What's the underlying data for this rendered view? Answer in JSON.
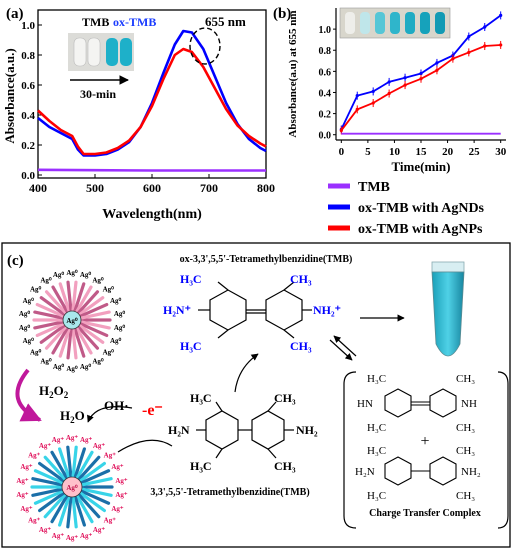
{
  "panels": {
    "a": {
      "tag": "(a)",
      "ylabel": "Absorbance(a.u.)",
      "xlabel": "Wavelength(nm)",
      "peak_label": "655 nm",
      "inset_label_tmb": "TMB",
      "inset_label_oxtmb": "ox-TMB",
      "inset_time": "30-min",
      "xticks": [
        "400",
        "500",
        "600",
        "700",
        "800"
      ],
      "yticks": [
        "0.0",
        "0.2",
        "0.4",
        "0.6",
        "0.8",
        "1.0"
      ]
    },
    "b": {
      "tag": "(b)",
      "ylabel": "Absorbance(a.u) at 655 nm",
      "xlabel": "Time(min)",
      "xticks": [
        "0",
        "5",
        "10",
        "15",
        "20",
        "25",
        "30"
      ],
      "yticks": [
        "0.0",
        "0.2",
        "0.4",
        "0.6",
        "0.8",
        "1.0"
      ]
    },
    "c": {
      "tag": "(c)",
      "title_top": "ox-3,3',5,5'-Tetramethylbenzidine(TMB)",
      "title_bottom": "3,3',5,5'-Tetramethylbenzidine(TMB)",
      "h2o2": "H2O2",
      "h2o": "H2O",
      "oh": "OH·",
      "electron": "-e⁻",
      "ctc_label": "Charge Transfer Complex",
      "plus": "+",
      "ag0": "Ag⁰",
      "agplus": "Ag⁺",
      "ctc_imine": "HN",
      "ctc_imine_r": "NH",
      "ctc_amine_l": "H₂N",
      "ctc_amine_r": "NH₂",
      "ox_left_group": "H₂N⁺",
      "ox_right_group": "NH₂⁺",
      "tmb_left_group": "H₂N",
      "tmb_right_group": "NH₂",
      "methyl": "CH₃",
      "methyl_l": "H₃C"
    }
  },
  "legend": [
    {
      "label": "TMB",
      "color": "#9b30ff"
    },
    {
      "label": "ox-TMB with AgNDs",
      "color": "#0000ff"
    },
    {
      "label": "ox-TMB with AgNPs",
      "color": "#ff0000"
    }
  ],
  "chart_data": [
    {
      "type": "line",
      "panel": "a",
      "xlabel": "Wavelength(nm)",
      "ylabel": "Absorbance(a.u.)",
      "xlim": [
        400,
        800
      ],
      "ylim": [
        -0.02,
        1.1
      ],
      "series": [
        {
          "name": "ox-TMB with AgNDs",
          "color": "#0000ff",
          "x": [
            400,
            420,
            440,
            460,
            470,
            480,
            500,
            520,
            540,
            560,
            580,
            600,
            620,
            640,
            655,
            670,
            690,
            710,
            730,
            750,
            770,
            790,
            800
          ],
          "y": [
            0.38,
            0.32,
            0.28,
            0.24,
            0.17,
            0.13,
            0.13,
            0.14,
            0.17,
            0.22,
            0.32,
            0.48,
            0.68,
            0.87,
            0.96,
            0.95,
            0.84,
            0.66,
            0.48,
            0.34,
            0.24,
            0.18,
            0.16
          ]
        },
        {
          "name": "ox-TMB with AgNPs",
          "color": "#ff0000",
          "x": [
            400,
            420,
            440,
            460,
            470,
            480,
            500,
            520,
            540,
            560,
            580,
            600,
            620,
            640,
            655,
            670,
            690,
            710,
            730,
            750,
            770,
            790,
            800
          ],
          "y": [
            0.43,
            0.36,
            0.3,
            0.26,
            0.19,
            0.14,
            0.14,
            0.15,
            0.18,
            0.23,
            0.32,
            0.46,
            0.64,
            0.8,
            0.84,
            0.82,
            0.72,
            0.58,
            0.44,
            0.33,
            0.26,
            0.21,
            0.19
          ]
        },
        {
          "name": "TMB",
          "color": "#9b30ff",
          "x": [
            400,
            500,
            600,
            700,
            800
          ],
          "y": [
            0.035,
            0.032,
            0.03,
            0.03,
            0.03
          ]
        }
      ]
    },
    {
      "type": "line",
      "panel": "b",
      "xlabel": "Time(min)",
      "ylabel": "Absorbance(a.u) at 655 nm",
      "xlim": [
        -1,
        31
      ],
      "ylim": [
        -0.05,
        1.2
      ],
      "series": [
        {
          "name": "ox-TMB with AgNDs",
          "color": "#0000ff",
          "x": [
            0,
            3,
            6,
            9,
            12,
            15,
            18,
            21,
            24,
            27,
            30
          ],
          "y": [
            0.05,
            0.37,
            0.41,
            0.5,
            0.54,
            0.58,
            0.68,
            0.75,
            0.93,
            1.02,
            1.13
          ]
        },
        {
          "name": "ox-TMB with AgNPs",
          "color": "#ff0000",
          "x": [
            0,
            3,
            6,
            9,
            12,
            15,
            18,
            21,
            24,
            27,
            30
          ],
          "y": [
            0.04,
            0.24,
            0.3,
            0.39,
            0.47,
            0.53,
            0.61,
            0.72,
            0.78,
            0.84,
            0.85
          ]
        },
        {
          "name": "TMB",
          "color": "#9b30ff",
          "x": [
            0,
            3,
            6,
            9,
            12,
            15,
            18,
            21,
            24,
            27,
            30
          ],
          "y": [
            0.01,
            0.01,
            0.01,
            0.01,
            0.01,
            0.01,
            0.01,
            0.01,
            0.01,
            0.01,
            0.01
          ]
        }
      ]
    }
  ]
}
